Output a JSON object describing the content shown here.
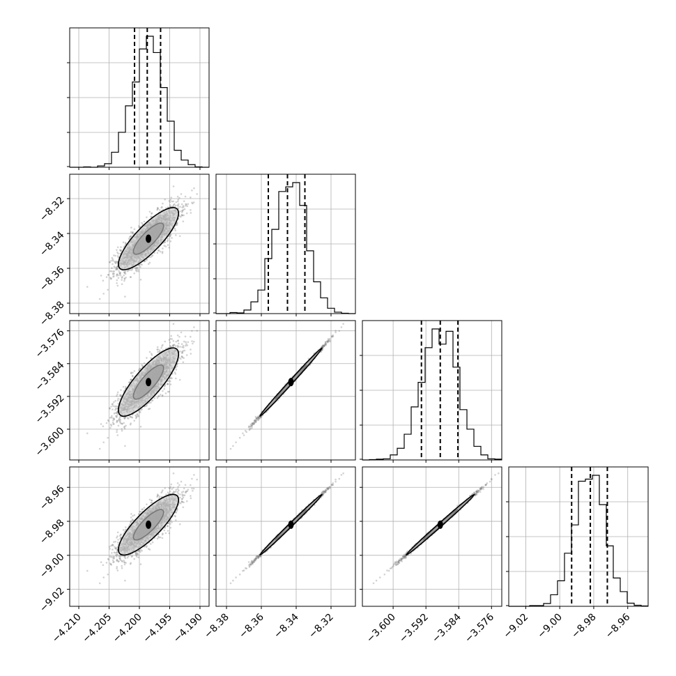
{
  "chart_data": {
    "type": "corner",
    "params": [
      {
        "index": 0,
        "mean": -4.1985,
        "std": 0.0025,
        "range": [
          -4.2115,
          -4.1885
        ],
        "ticks": [
          -4.21,
          -4.205,
          -4.2,
          -4.195,
          -4.19
        ],
        "tick_labels": [
          "−4.210",
          "−4.205",
          "−4.200",
          "−4.195",
          "−4.190"
        ],
        "quantiles": [
          -4.2008,
          -4.1987,
          -4.1965
        ]
      },
      {
        "index": 1,
        "mean": -8.343,
        "std": 0.009,
        "range": [
          -8.386,
          -8.306
        ],
        "ticks": [
          -8.38,
          -8.36,
          -8.34,
          -8.32
        ],
        "tick_labels": [
          "−8.38",
          "−8.36",
          "−8.34",
          "−8.32"
        ],
        "quantiles": [
          -8.356,
          -8.345,
          -8.335
        ]
      },
      {
        "index": 2,
        "mean": -3.5885,
        "std": 0.0042,
        "range": [
          -3.6075,
          -3.5735
        ],
        "ticks": [
          -3.6,
          -3.592,
          -3.584,
          -3.576
        ],
        "tick_labels": [
          "−3.600",
          "−3.592",
          "−3.584",
          "−3.576"
        ],
        "quantiles": [
          -3.5931,
          -3.5885,
          -3.5842
        ]
      },
      {
        "index": 3,
        "mean": -8.982,
        "std": 0.009,
        "range": [
          -9.03,
          -8.948
        ],
        "ticks": [
          -9.02,
          -9.0,
          -8.98,
          -8.96
        ],
        "tick_labels": [
          "−9.02",
          "−9.00",
          "−8.98",
          "−8.96"
        ],
        "quantiles": [
          -8.993,
          -8.982,
          -8.972
        ]
      }
    ],
    "correlations": [
      [
        1.0,
        0.82,
        0.82,
        0.82
      ],
      [
        0.82,
        1.0,
        0.9985,
        0.9985
      ],
      [
        0.82,
        0.9985,
        1.0,
        0.9985
      ],
      [
        0.82,
        0.9985,
        0.9985,
        1.0
      ]
    ],
    "histogram_bins": 20,
    "density_levels": [
      0.39,
      0.86
    ],
    "grid": true,
    "colors": {
      "points": "#808080",
      "line": "#000000",
      "grid": "#b0b0b0"
    }
  }
}
